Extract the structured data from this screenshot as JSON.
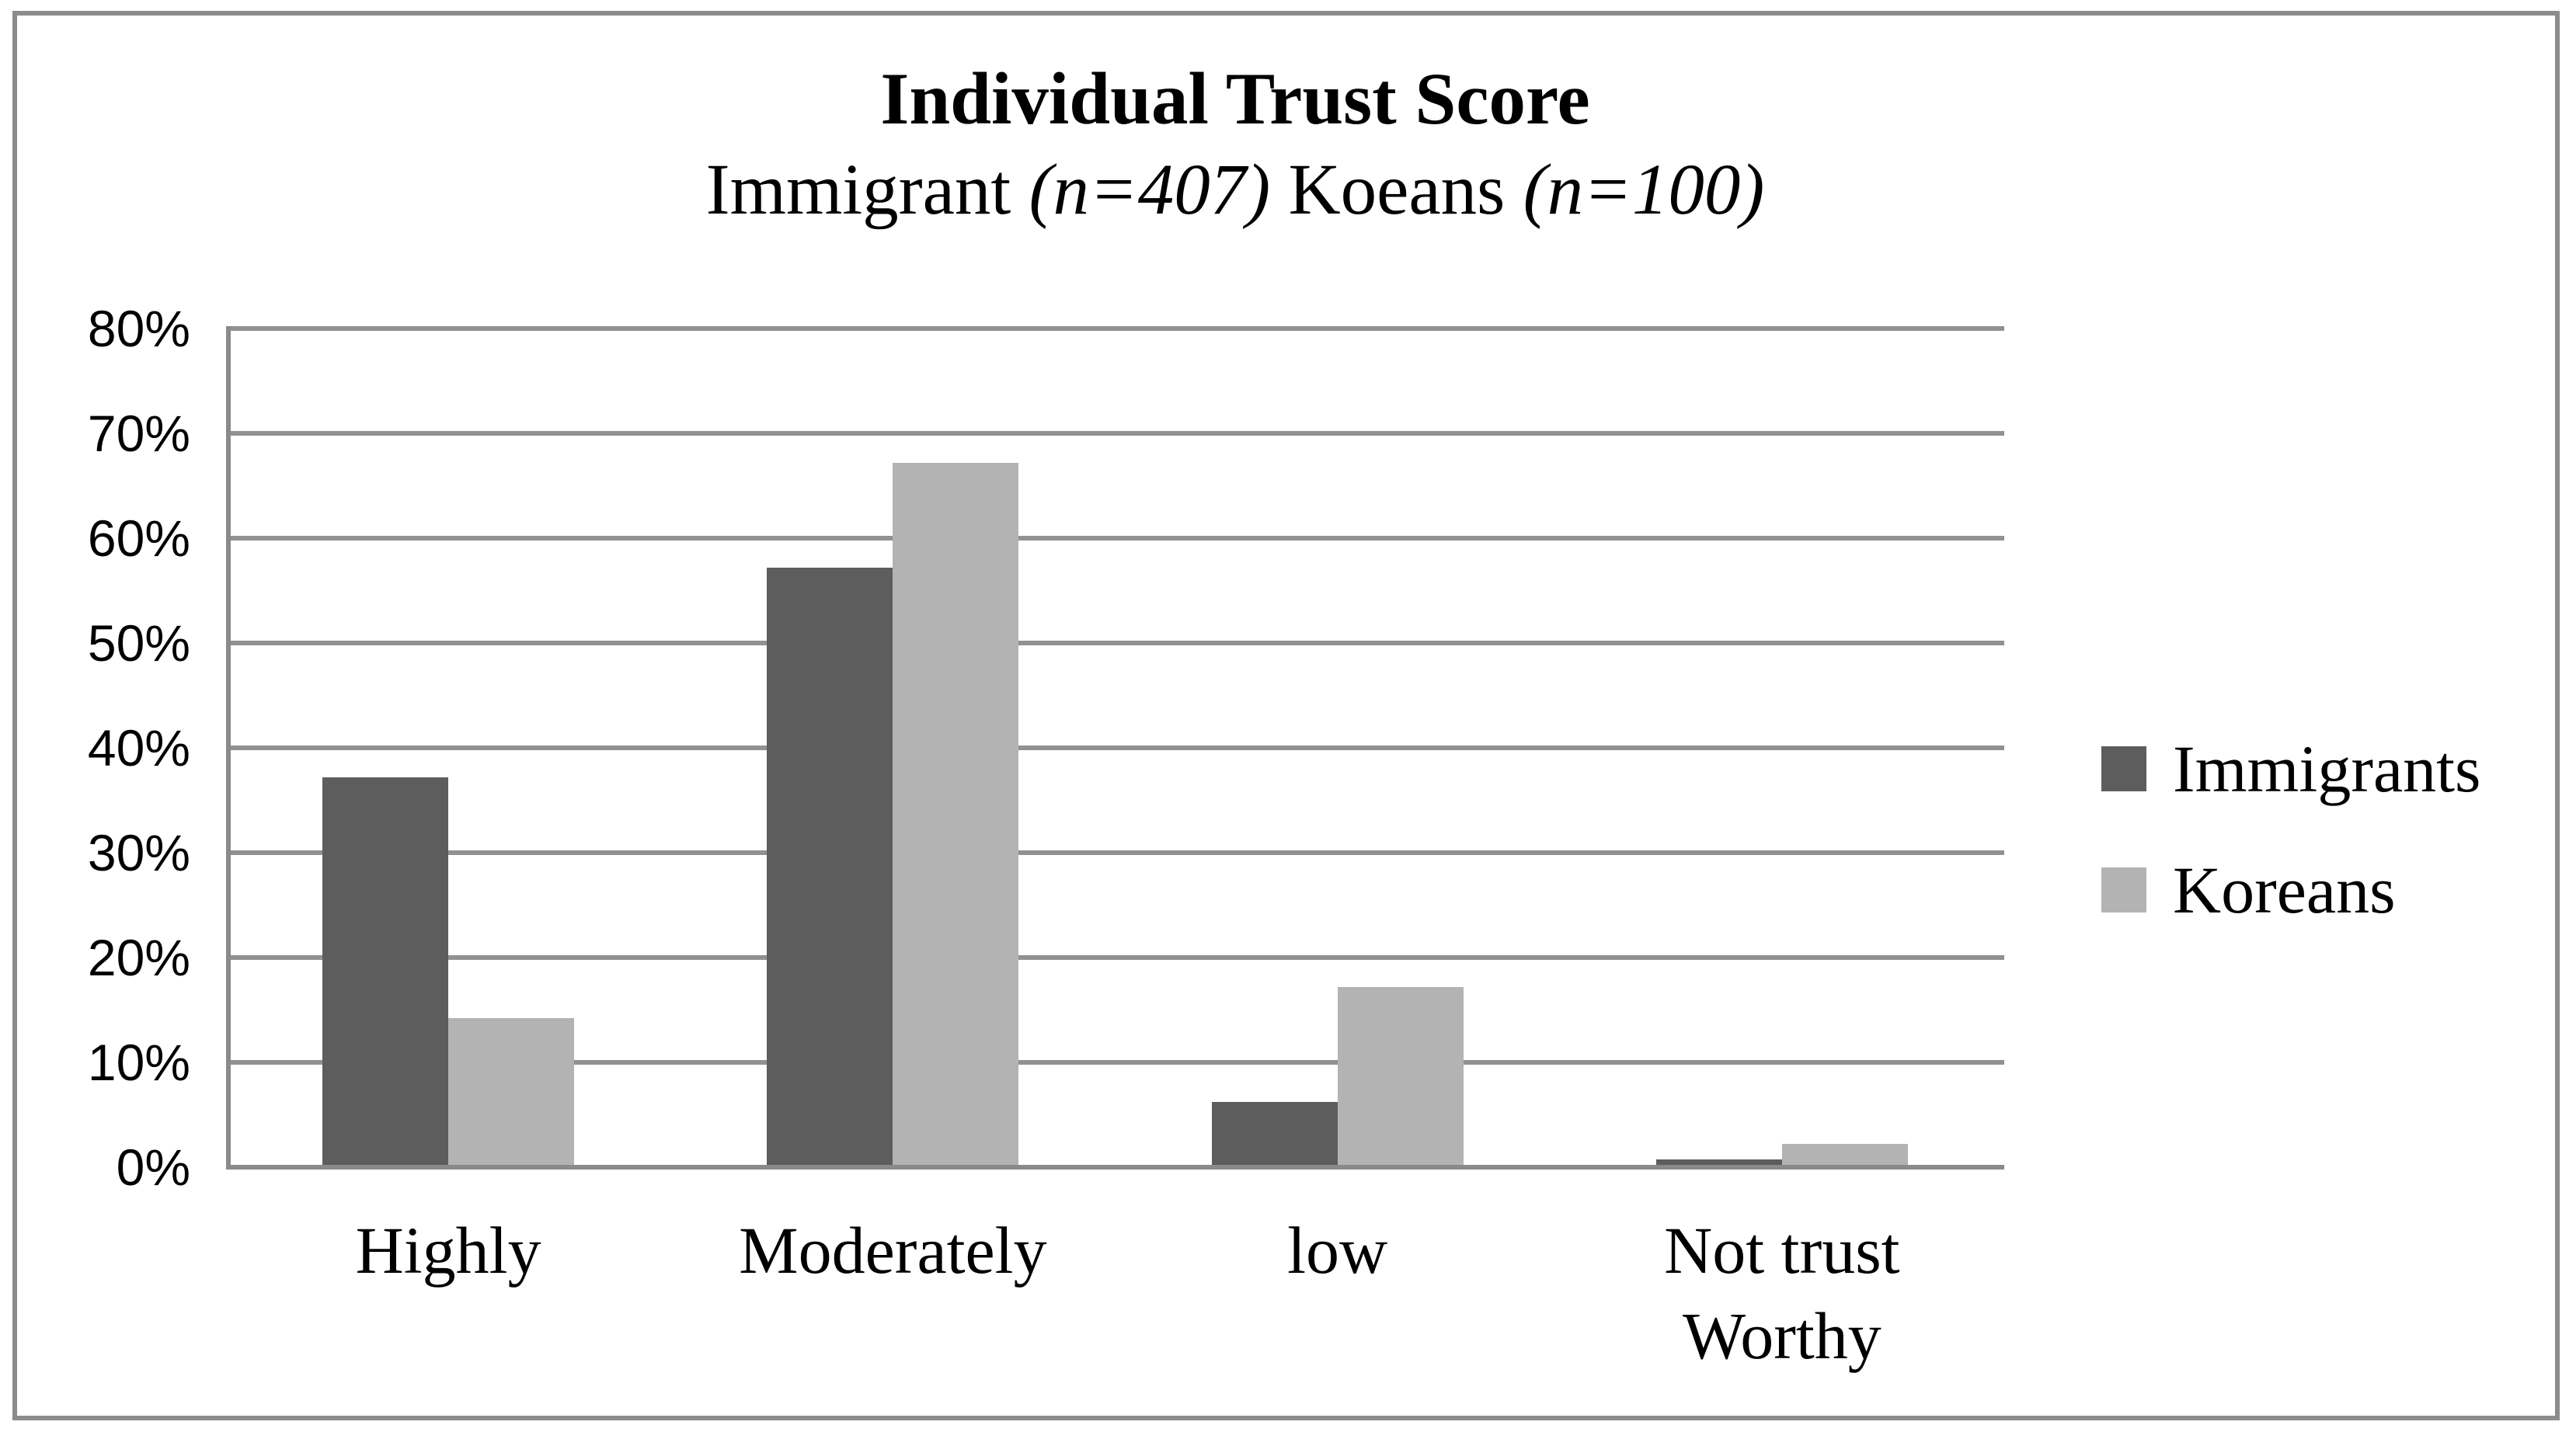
{
  "chart_data": {
    "type": "bar",
    "title": "Individual Trust Score",
    "subtitle": "Immigrant (n=407) Koeans (n=100)",
    "subtitle_parts": [
      {
        "text": "Immigrant ",
        "italic": false
      },
      {
        "text": "(n=407)",
        "italic": true
      },
      {
        "text": " Koeans ",
        "italic": false
      },
      {
        "text": "(n=100)",
        "italic": true
      }
    ],
    "categories": [
      "Highly",
      "Moderately",
      "low",
      "Not trust Worthy"
    ],
    "series": [
      {
        "name": "Immigrants",
        "color": "#5d5d5d",
        "values": [
          37,
          57,
          6,
          0.5
        ]
      },
      {
        "name": "Koreans",
        "color": "#b3b3b3",
        "values": [
          14,
          67,
          17,
          2
        ]
      }
    ],
    "y_axis": {
      "min": 0,
      "max": 80,
      "step": 10,
      "tick_labels": [
        "0%",
        "10%",
        "20%",
        "30%",
        "40%",
        "50%",
        "60%",
        "70%",
        "80%"
      ],
      "format": "percent"
    },
    "grid": true,
    "legend_position": "right",
    "colors": {
      "gridline": "#919191",
      "axis": "#8a8a8a",
      "frame_border": "#8c8c8c",
      "background": "#ffffff",
      "text": "#000000"
    }
  }
}
